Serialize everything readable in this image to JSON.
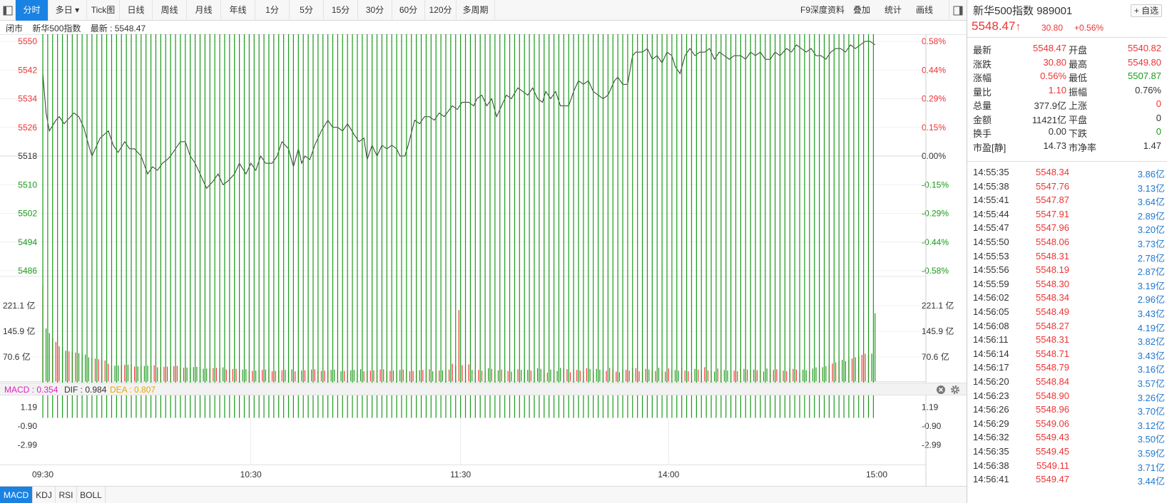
{
  "toolbar": {
    "items": [
      "分时",
      "多日",
      "Tick图",
      "日线",
      "周线",
      "月线",
      "年线",
      "1分",
      "5分",
      "15分",
      "30分",
      "60分",
      "120分",
      "多周期"
    ],
    "dropdown_arrow": "▾",
    "right_items": [
      "F9深度资料",
      "叠加",
      "统计",
      "画线"
    ]
  },
  "info": {
    "status": "闭市",
    "name": "新华500指数",
    "latest_label": "最新 : 5548.47"
  },
  "header": {
    "name": "新华500指数",
    "code": "989001",
    "price": "5548.47",
    "arrow": "↑",
    "change": "30.80",
    "change_pct": "+0.56%",
    "watch_button": "+ 自选"
  },
  "quote": [
    {
      "l1": "最新",
      "v1": "5548.47",
      "c1": "red",
      "l2": "开盘",
      "v2": "5540.82",
      "c2": "red"
    },
    {
      "l1": "涨跌",
      "v1": "30.80",
      "c1": "red",
      "l2": "最高",
      "v2": "5549.80",
      "c2": "red"
    },
    {
      "l1": "涨幅",
      "v1": "0.56%",
      "c1": "red",
      "l2": "最低",
      "v2": "5507.87",
      "c2": "green"
    },
    {
      "l1": "量比",
      "v1": "1.10",
      "c1": "red",
      "l2": "振幅",
      "v2": "0.76%",
      "c2": "black"
    },
    {
      "l1": "总量",
      "v1": "377.9亿",
      "c1": "black",
      "l2": "上涨",
      "v2": "0",
      "c2": "red"
    },
    {
      "l1": "金额",
      "v1": "11421亿",
      "c1": "black",
      "l2": "平盘",
      "v2": "0",
      "c2": "black"
    },
    {
      "l1": "换手",
      "v1": "0.00",
      "c1": "black",
      "l2": "下跌",
      "v2": "0",
      "c2": "green"
    },
    {
      "l1": "市盈[静]",
      "v1": "14.73",
      "c1": "black",
      "l2": "市净率",
      "v2": "1.47",
      "c2": "black"
    }
  ],
  "ticks": [
    {
      "t": "14:55:35",
      "p": "5548.34",
      "v": "3.86亿"
    },
    {
      "t": "14:55:38",
      "p": "5547.76",
      "v": "3.13亿"
    },
    {
      "t": "14:55:41",
      "p": "5547.87",
      "v": "3.64亿"
    },
    {
      "t": "14:55:44",
      "p": "5547.91",
      "v": "2.89亿"
    },
    {
      "t": "14:55:47",
      "p": "5547.96",
      "v": "3.20亿"
    },
    {
      "t": "14:55:50",
      "p": "5548.06",
      "v": "3.73亿"
    },
    {
      "t": "14:55:53",
      "p": "5548.31",
      "v": "2.78亿"
    },
    {
      "t": "14:55:56",
      "p": "5548.19",
      "v": "2.87亿"
    },
    {
      "t": "14:55:59",
      "p": "5548.30",
      "v": "3.19亿"
    },
    {
      "t": "14:56:02",
      "p": "5548.34",
      "v": "2.96亿"
    },
    {
      "t": "14:56:05",
      "p": "5548.49",
      "v": "3.43亿"
    },
    {
      "t": "14:56:08",
      "p": "5548.27",
      "v": "4.19亿"
    },
    {
      "t": "14:56:11",
      "p": "5548.31",
      "v": "3.82亿"
    },
    {
      "t": "14:56:14",
      "p": "5548.71",
      "v": "3.43亿"
    },
    {
      "t": "14:56:17",
      "p": "5548.79",
      "v": "3.16亿"
    },
    {
      "t": "14:56:20",
      "p": "5548.84",
      "v": "3.57亿"
    },
    {
      "t": "14:56:23",
      "p": "5548.90",
      "v": "3.26亿"
    },
    {
      "t": "14:56:26",
      "p": "5548.96",
      "v": "3.70亿"
    },
    {
      "t": "14:56:29",
      "p": "5549.06",
      "v": "3.12亿"
    },
    {
      "t": "14:56:32",
      "p": "5549.43",
      "v": "3.50亿"
    },
    {
      "t": "14:56:35",
      "p": "5549.45",
      "v": "3.59亿"
    },
    {
      "t": "14:56:38",
      "p": "5549.11",
      "v": "3.71亿"
    },
    {
      "t": "14:56:41",
      "p": "5549.47",
      "v": "3.44亿"
    }
  ],
  "macd_legend": {
    "macd": "MACD : 0.354",
    "dif": "DIF : 0.984",
    "dea": "DEA : 0.807"
  },
  "indicator_tabs": [
    "MACD",
    "KDJ",
    "RSI",
    "BOLL"
  ],
  "colors": {
    "up": "#e33333",
    "down": "#1a9a1a",
    "accent": "#1a82e2",
    "dif": "#333333",
    "dea": "#e8a800",
    "macd_label": "#e020c0"
  },
  "chart_data": {
    "type": "line",
    "prev_close": 5518,
    "price_ylim": [
      5486,
      5550
    ],
    "price_ticks": [
      "5550",
      "5542",
      "5534",
      "5526",
      "5518",
      "5510",
      "5502",
      "5494",
      "5486"
    ],
    "pct_ticks": [
      "0.58%",
      "0.44%",
      "0.29%",
      "0.15%",
      "0.00%",
      "-0.15%",
      "-0.29%",
      "-0.44%",
      "-0.58%"
    ],
    "x_labels": [
      "09:30",
      "10:30",
      "11:30",
      "14:00",
      "15:00"
    ],
    "price": [
      [
        0,
        5541
      ],
      [
        2,
        5530
      ],
      [
        4,
        5525
      ],
      [
        8,
        5528
      ],
      [
        10,
        5529
      ],
      [
        13,
        5527
      ],
      [
        15,
        5528
      ],
      [
        19,
        5530
      ],
      [
        22,
        5529
      ],
      [
        25,
        5526
      ],
      [
        28,
        5521
      ],
      [
        30,
        5518
      ],
      [
        35,
        5523
      ],
      [
        40,
        5525
      ],
      [
        43,
        5521
      ],
      [
        46,
        5519
      ],
      [
        50,
        5522
      ],
      [
        53,
        5520
      ],
      [
        56,
        5520
      ],
      [
        60,
        5518
      ],
      [
        64,
        5513
      ],
      [
        67,
        5515
      ],
      [
        70,
        5514
      ],
      [
        73,
        5516
      ],
      [
        76,
        5517
      ],
      [
        78,
        5518
      ],
      [
        81,
        5520
      ],
      [
        84,
        5522
      ],
      [
        87,
        5522
      ],
      [
        90,
        5518
      ],
      [
        93,
        5516
      ],
      [
        96,
        5513
      ],
      [
        100,
        5509
      ],
      [
        104,
        5511
      ],
      [
        107,
        5513
      ],
      [
        110,
        5510
      ],
      [
        113,
        5511
      ],
      [
        117,
        5513
      ],
      [
        120,
        5516
      ],
      [
        124,
        5513
      ],
      [
        127,
        5516
      ],
      [
        130,
        5514
      ],
      [
        133,
        5518
      ],
      [
        136,
        5516
      ],
      [
        140,
        5516
      ],
      [
        143,
        5518
      ],
      [
        146,
        5522
      ],
      [
        150,
        5520
      ],
      [
        153,
        5515
      ],
      [
        156,
        5520
      ],
      [
        158,
        5516
      ],
      [
        160,
        5518
      ],
      [
        163,
        5517
      ],
      [
        166,
        5521
      ],
      [
        170,
        5525
      ],
      [
        174,
        5528
      ],
      [
        177,
        5526
      ],
      [
        180,
        5526
      ],
      [
        183,
        5525
      ],
      [
        186,
        5527
      ],
      [
        190,
        5524
      ],
      [
        193,
        5522
      ],
      [
        196,
        5523
      ],
      [
        198,
        5517
      ],
      [
        201,
        5521
      ],
      [
        204,
        5518
      ],
      [
        207,
        5521
      ],
      [
        210,
        5520
      ],
      [
        213,
        5521
      ],
      [
        216,
        5520
      ],
      [
        218,
        5518
      ],
      [
        221,
        5518
      ],
      [
        223,
        5521
      ],
      [
        227,
        5528
      ],
      [
        230,
        5527
      ],
      [
        233,
        5529
      ],
      [
        236,
        5529
      ],
      [
        239,
        5528
      ],
      [
        242,
        5530
      ],
      [
        245,
        5529
      ],
      [
        250,
        5532
      ],
      [
        253,
        5531
      ],
      [
        256,
        5533
      ],
      [
        260,
        5533
      ],
      [
        263,
        5532
      ],
      [
        265,
        5534
      ],
      [
        268,
        5535
      ],
      [
        271,
        5532
      ],
      [
        274,
        5534
      ],
      [
        277,
        5529
      ],
      [
        280,
        5532
      ],
      [
        283,
        5535
      ],
      [
        286,
        5534
      ],
      [
        290,
        5537
      ],
      [
        293,
        5536
      ],
      [
        296,
        5535
      ],
      [
        299,
        5537
      ],
      [
        302,
        5534
      ],
      [
        305,
        5533
      ],
      [
        307,
        5536
      ],
      [
        310,
        5534
      ],
      [
        313,
        5536
      ],
      [
        316,
        5532
      ],
      [
        318,
        5532
      ],
      [
        321,
        5532
      ],
      [
        324,
        5536
      ],
      [
        327,
        5539
      ],
      [
        330,
        5538
      ],
      [
        333,
        5539
      ],
      [
        336,
        5536
      ],
      [
        339,
        5535
      ],
      [
        342,
        5534
      ],
      [
        345,
        5535
      ],
      [
        349,
        5539
      ],
      [
        351,
        5540
      ],
      [
        354,
        5538
      ],
      [
        357,
        5538
      ],
      [
        360,
        5546
      ],
      [
        362,
        5547
      ],
      [
        366,
        5547
      ],
      [
        369,
        5548
      ],
      [
        372,
        5545
      ],
      [
        375,
        5546
      ],
      [
        378,
        5544
      ],
      [
        381,
        5547
      ],
      [
        384,
        5546
      ],
      [
        386,
        5543
      ],
      [
        389,
        5541
      ],
      [
        392,
        5546
      ],
      [
        395,
        5548
      ],
      [
        398,
        5546
      ],
      [
        401,
        5547
      ],
      [
        404,
        5547
      ],
      [
        407,
        5548
      ],
      [
        410,
        5545
      ],
      [
        413,
        5547
      ],
      [
        416,
        5546
      ],
      [
        419,
        5545
      ],
      [
        422,
        5546
      ],
      [
        426,
        5546
      ],
      [
        429,
        5545
      ],
      [
        432,
        5547
      ],
      [
        435,
        5546
      ],
      [
        438,
        5547
      ],
      [
        441,
        5545
      ],
      [
        444,
        5545
      ],
      [
        447,
        5547
      ],
      [
        450,
        5546
      ],
      [
        454,
        5548
      ],
      [
        457,
        5547
      ],
      [
        460,
        5549
      ],
      [
        463,
        5548
      ],
      [
        466,
        5547
      ],
      [
        469,
        5548
      ],
      [
        472,
        5546
      ],
      [
        475,
        5546
      ],
      [
        478,
        5545
      ],
      [
        481,
        5547
      ],
      [
        484,
        5548
      ],
      [
        487,
        5548
      ],
      [
        490,
        5547
      ],
      [
        493,
        5549
      ],
      [
        496,
        5548
      ],
      [
        499,
        5549
      ],
      [
        502,
        5550
      ],
      [
        505,
        5550
      ],
      [
        508,
        5549
      ]
    ],
    "volume_ticks": [
      "221.1 亿",
      "145.9 亿",
      "70.6 亿"
    ],
    "volume_ylim": [
      0,
      290
    ],
    "macd_ticks": [
      "1.19",
      "-0.90",
      "-2.99"
    ],
    "macd_ylim": [
      -4.2,
      2.4
    ]
  }
}
